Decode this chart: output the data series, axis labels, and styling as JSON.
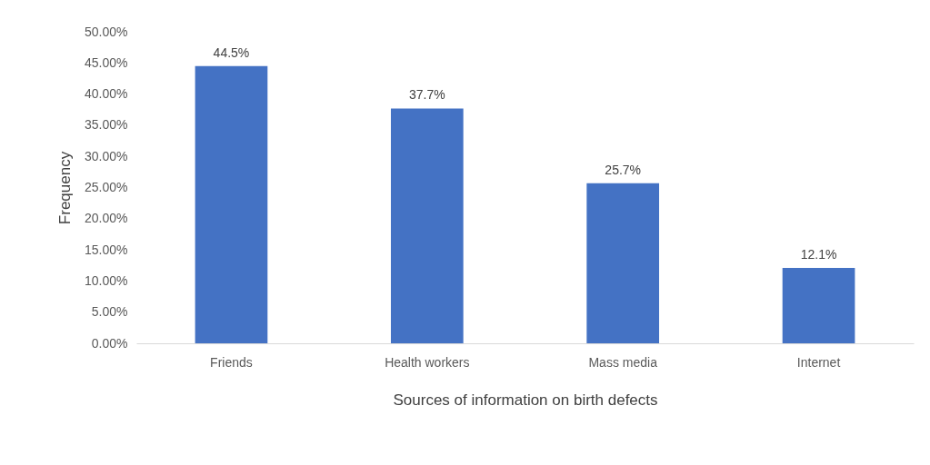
{
  "chart_data": {
    "type": "bar",
    "xlabel": "Sources of information on birth defects",
    "ylabel": "Frequency",
    "categories": [
      "Friends",
      "Health workers",
      "Mass media",
      "Internet"
    ],
    "values": [
      44.5,
      37.7,
      25.7,
      12.1
    ],
    "value_labels": [
      "44.5%",
      "37.7%",
      "25.7%",
      "12.1%"
    ],
    "color": "#4472c4",
    "ylim": [
      0,
      50
    ],
    "yticks": [
      {
        "value": 0,
        "label": "0.00%"
      },
      {
        "value": 5,
        "label": "5.00%"
      },
      {
        "value": 10,
        "label": "10.00%"
      },
      {
        "value": 15,
        "label": "15.00%"
      },
      {
        "value": 20,
        "label": "20.00%"
      },
      {
        "value": 25,
        "label": "25.00%"
      },
      {
        "value": 30,
        "label": "30.00%"
      },
      {
        "value": 35,
        "label": "35.00%"
      },
      {
        "value": 40,
        "label": "40.00%"
      },
      {
        "value": 45,
        "label": "45.00%"
      },
      {
        "value": 50,
        "label": "50.00%"
      }
    ],
    "grid": false
  }
}
